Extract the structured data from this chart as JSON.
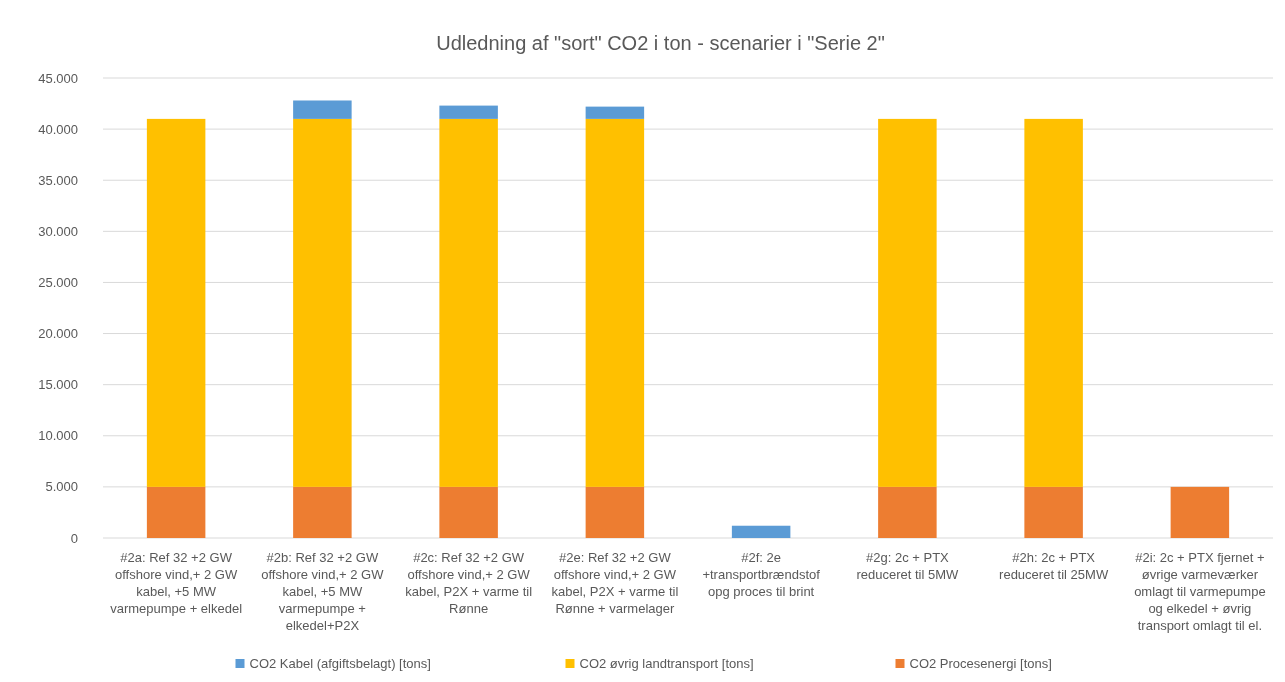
{
  "chart_data": {
    "type": "bar",
    "title": "Udledning af \"sort\" CO2 i ton - scenarier i \"Serie 2\"",
    "stacked": true,
    "grid": "y",
    "legend": "bottom",
    "categories": [
      "#2a:  Ref 32 +2 GW offshore vind,+ 2 GW kabel, +5 MW varmepumpe + elkedel",
      "#2b:  Ref 32 +2 GW offshore vind,+ 2 GW kabel, +5 MW varmepumpe + elkedel+P2X",
      "#2c: Ref 32 +2 GW offshore vind,+ 2 GW kabel, P2X +  varme til Rønne",
      "#2e: Ref 32 +2 GW offshore vind,+ 2 GW kabel, P2X +  varme til Rønne + varmelager",
      "#2f: 2e +transportbrændstof opg proces til brint",
      "#2g: 2c + PTX reduceret til 5MW",
      "#2h: 2c + PTX reduceret til 25MW",
      "#2i: 2c + PTX fjernet + øvrige varmeværker omlagt til varmepumpe og elkedel + øvrig transport omlagt til el."
    ],
    "series": [
      {
        "name": "CO2 Procesenergi [tons]",
        "color": "#ed7d31",
        "values": [
          5000,
          5000,
          5000,
          5000,
          0,
          5000,
          5000,
          5000
        ]
      },
      {
        "name": "CO2 øvrig landtransport [tons]",
        "color": "#ffc000",
        "values": [
          36000,
          36000,
          36000,
          36000,
          0,
          36000,
          36000,
          0
        ]
      },
      {
        "name": "CO2 Kabel (afgiftsbelagt) [tons]",
        "color": "#5b9bd5",
        "values": [
          0,
          1800,
          1300,
          1200,
          1200,
          0,
          0,
          0
        ]
      }
    ],
    "ylim": [
      0,
      45000
    ],
    "yticks": [
      0,
      {
        "value": 5000,
        "label": "5.000"
      },
      {
        "value": 10000,
        "label": "10.000"
      },
      {
        "value": 15000,
        "label": "15.000"
      },
      {
        "value": 20000,
        "label": "20.000"
      },
      {
        "value": 25000,
        "label": "25.000"
      },
      {
        "value": 30000,
        "label": "30.000"
      },
      {
        "value": 35000,
        "label": "35.000"
      },
      {
        "value": 40000,
        "label": "40.000"
      },
      {
        "value": 45000,
        "label": "45.000"
      }
    ]
  }
}
